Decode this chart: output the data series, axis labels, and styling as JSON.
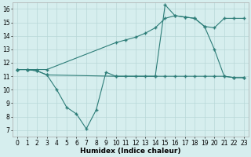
{
  "line1_x": [
    0,
    1,
    2,
    3,
    10,
    11,
    12,
    13,
    14,
    15,
    16,
    17,
    18,
    19,
    20,
    21,
    22,
    23
  ],
  "line1_y": [
    11.5,
    11.5,
    11.4,
    11.1,
    11.0,
    11.0,
    11.0,
    11.0,
    11.0,
    11.0,
    11.0,
    11.0,
    11.0,
    11.0,
    11.0,
    11.0,
    10.9,
    10.9
  ],
  "line2_x": [
    0,
    1,
    2,
    3,
    10,
    11,
    12,
    13,
    14,
    15,
    16,
    17,
    18,
    19,
    20,
    21,
    22,
    23
  ],
  "line2_y": [
    11.5,
    11.5,
    11.5,
    11.5,
    13.5,
    13.7,
    13.9,
    14.2,
    14.6,
    15.3,
    15.5,
    15.4,
    15.3,
    14.7,
    14.6,
    15.3,
    15.3,
    15.3
  ],
  "line3_x": [
    0,
    1,
    2,
    3,
    4,
    5,
    6,
    7,
    8,
    9,
    10,
    14,
    15,
    16,
    17,
    18,
    19,
    20,
    21,
    22,
    23
  ],
  "line3_y": [
    11.5,
    11.5,
    11.4,
    11.1,
    10.0,
    8.7,
    8.2,
    7.1,
    8.5,
    11.3,
    11.0,
    11.0,
    16.3,
    15.5,
    15.4,
    15.3,
    14.7,
    13.0,
    11.0,
    10.9,
    10.9
  ],
  "line_color": "#2d7d78",
  "bg_color": "#d6eeee",
  "grid_color": "#b8d8d8",
  "xlabel": "Humidex (Indice chaleur)",
  "xticks": [
    0,
    1,
    2,
    3,
    4,
    5,
    6,
    7,
    8,
    9,
    10,
    11,
    12,
    13,
    14,
    15,
    16,
    17,
    18,
    19,
    20,
    21,
    22,
    23
  ],
  "yticks": [
    7,
    8,
    9,
    10,
    11,
    12,
    13,
    14,
    15,
    16
  ],
  "xlim": [
    -0.5,
    23.5
  ],
  "ylim": [
    6.5,
    16.5
  ],
  "xlabel_fontsize": 6.5,
  "tick_fontsize": 5.5
}
